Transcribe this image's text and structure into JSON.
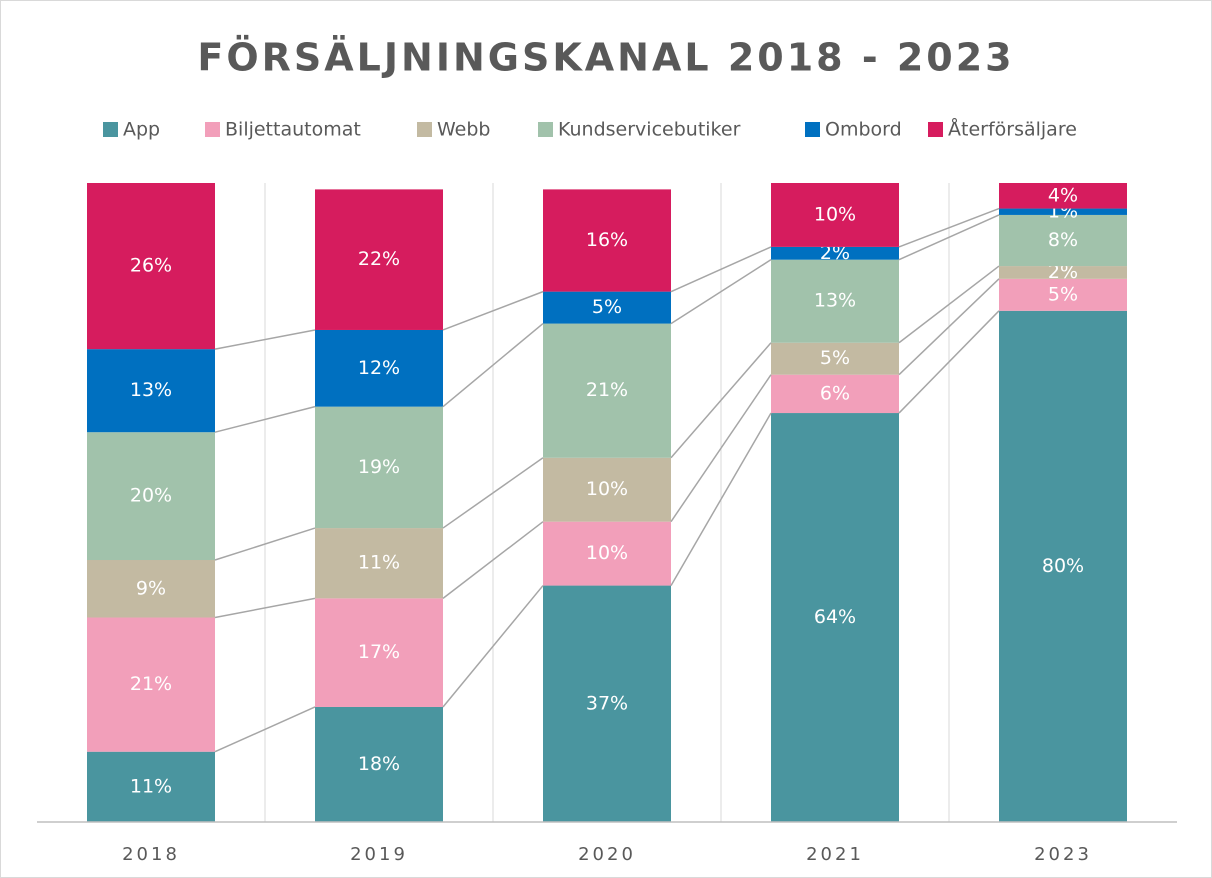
{
  "chart_data": {
    "type": "stacked_bar",
    "title": "FÖRSÄLJNINGSKANAL 2018 - 2023",
    "categories": [
      "2018",
      "2019",
      "2020",
      "2021",
      "2023"
    ],
    "ylim": [
      0,
      100
    ],
    "series": [
      {
        "name": "App",
        "color": "#4a959f",
        "values": [
          11,
          18,
          37,
          64,
          80
        ],
        "value_labels": [
          "11%",
          "18%",
          "37%",
          "64%",
          "80%"
        ]
      },
      {
        "name": "Biljettautomat",
        "color": "#f29fba",
        "values": [
          21,
          17,
          10,
          6,
          5
        ],
        "value_labels": [
          "21%",
          "17%",
          "10%",
          "6%",
          "5%"
        ]
      },
      {
        "name": "Webb",
        "color": "#c3baa2",
        "values": [
          9,
          11,
          10,
          5,
          2
        ],
        "value_labels": [
          "9%",
          "11%",
          "10%",
          "5%",
          "2%"
        ]
      },
      {
        "name": "Kundservicebutiker",
        "color": "#a1c2ab",
        "values": [
          20,
          19,
          21,
          13,
          8
        ],
        "value_labels": [
          "20%",
          "19%",
          "21%",
          "13%",
          "8%"
        ]
      },
      {
        "name": "Ombord",
        "color": "#0070c0",
        "values": [
          13,
          12,
          5,
          2,
          1
        ],
        "value_labels": [
          "13%",
          "12%",
          "5%",
          "2%",
          "1%"
        ]
      },
      {
        "name": "Återförsäljare",
        "color": "#d61c5e",
        "values": [
          26,
          22,
          16,
          10,
          4
        ],
        "value_labels": [
          "26%",
          "22%",
          "16%",
          "10%",
          "4%"
        ]
      }
    ]
  }
}
